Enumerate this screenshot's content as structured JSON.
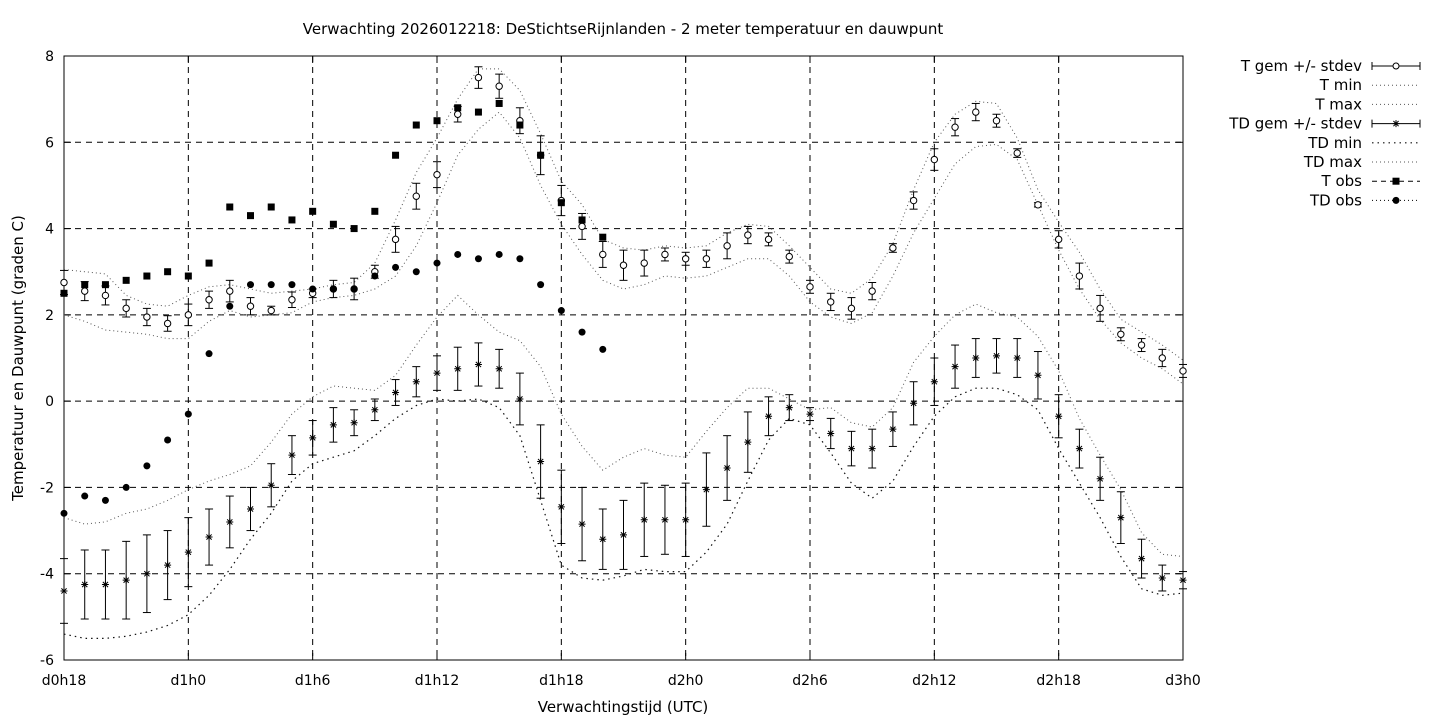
{
  "chart_data": {
    "type": "line",
    "title": "Verwachting 2026012218: DeStichtseRijnlanden - 2 meter temperatuur en dauwpunt",
    "xlabel": "Verwachtingstijd (UTC)",
    "ylabel": "Temperatuur en Dauwpunt (graden C)",
    "xlim": [
      0,
      54
    ],
    "ylim": [
      -6,
      8
    ],
    "x_ticks": [
      0,
      6,
      12,
      18,
      24,
      30,
      36,
      42,
      48,
      54
    ],
    "x_tick_labels": [
      "d0h18",
      "d1h0",
      "d1h6",
      "d1h12",
      "d1h18",
      "d2h0",
      "d2h6",
      "d2h12",
      "d2h18",
      "d3h0"
    ],
    "y_ticks": [
      -6,
      -4,
      -2,
      0,
      2,
      4,
      6,
      8
    ],
    "y_tick_labels": [
      "-6",
      "-4",
      "-2",
      "0",
      "2",
      "4",
      "6",
      "8"
    ],
    "grid": true,
    "legend_position": "outside-right",
    "legend": [
      "T gem +/- stdev",
      "T min",
      "T max",
      "TD gem +/- stdev",
      "TD min",
      "TD max",
      "T obs",
      "TD obs"
    ],
    "series": [
      {
        "name": "T gem +/- stdev",
        "style": "errorbar-circle",
        "x": [
          0,
          1,
          2,
          3,
          4,
          5,
          6,
          7,
          8,
          9,
          10,
          11,
          12,
          13,
          14,
          15,
          16,
          17,
          18,
          19,
          20,
          21,
          22,
          23,
          24,
          25,
          26,
          27,
          28,
          29,
          30,
          31,
          32,
          33,
          34,
          35,
          36,
          37,
          38,
          39,
          40,
          41,
          42,
          43,
          44,
          45,
          46,
          47,
          48,
          49,
          50,
          51,
          52,
          53,
          54
        ],
        "y": [
          2.75,
          2.55,
          2.45,
          2.15,
          1.95,
          1.8,
          2.0,
          2.35,
          2.55,
          2.2,
          2.1,
          2.35,
          2.5,
          2.6,
          2.6,
          3.0,
          3.75,
          4.75,
          5.25,
          6.65,
          7.5,
          7.3,
          6.5,
          5.7,
          4.65,
          4.05,
          3.4,
          3.15,
          3.2,
          3.4,
          3.3,
          3.3,
          3.6,
          3.85,
          3.75,
          3.35,
          2.65,
          2.3,
          2.15,
          2.55,
          3.55,
          4.65,
          5.6,
          6.35,
          6.7,
          6.5,
          5.75,
          4.55,
          3.75,
          2.9,
          2.15,
          1.55,
          1.3,
          1.0,
          0.7
        ],
        "stdev": [
          0.28,
          0.22,
          0.22,
          0.2,
          0.2,
          0.18,
          0.25,
          0.2,
          0.25,
          0.2,
          0.1,
          0.18,
          0.1,
          0.2,
          0.25,
          0.15,
          0.3,
          0.3,
          0.3,
          0.18,
          0.25,
          0.28,
          0.3,
          0.45,
          0.35,
          0.3,
          0.3,
          0.35,
          0.3,
          0.15,
          0.15,
          0.2,
          0.3,
          0.2,
          0.15,
          0.15,
          0.15,
          0.2,
          0.25,
          0.2,
          0.1,
          0.2,
          0.25,
          0.2,
          0.2,
          0.15,
          0.1,
          0.05,
          0.2,
          0.3,
          0.3,
          0.15,
          0.15,
          0.2,
          0.15
        ]
      },
      {
        "name": "T min",
        "style": "dotted",
        "x": [
          0,
          1,
          2,
          3,
          4,
          5,
          6,
          7,
          8,
          9,
          10,
          11,
          12,
          13,
          14,
          15,
          16,
          17,
          18,
          19,
          20,
          21,
          22,
          23,
          24,
          25,
          26,
          27,
          28,
          29,
          30,
          31,
          32,
          33,
          34,
          35,
          36,
          37,
          38,
          39,
          40,
          41,
          42,
          43,
          44,
          45,
          46,
          47,
          48,
          49,
          50,
          51,
          52,
          53,
          54
        ],
        "y": [
          2.0,
          1.85,
          1.65,
          1.6,
          1.55,
          1.45,
          1.45,
          1.85,
          2.1,
          1.95,
          2.0,
          2.05,
          2.3,
          2.4,
          2.45,
          2.6,
          2.9,
          3.6,
          4.6,
          5.7,
          6.3,
          6.7,
          6.1,
          5.0,
          4.1,
          3.4,
          2.8,
          2.6,
          2.7,
          2.9,
          2.85,
          2.9,
          3.1,
          3.3,
          3.3,
          2.9,
          2.3,
          1.95,
          1.8,
          2.05,
          2.9,
          3.9,
          4.7,
          5.5,
          5.9,
          5.95,
          5.6,
          4.55,
          3.5,
          2.6,
          1.9,
          1.35,
          1.0,
          0.75,
          0.4
        ]
      },
      {
        "name": "T max",
        "style": "dotted",
        "x": [
          0,
          1,
          2,
          3,
          4,
          5,
          6,
          7,
          8,
          9,
          10,
          11,
          12,
          13,
          14,
          15,
          16,
          17,
          18,
          19,
          20,
          21,
          22,
          23,
          24,
          25,
          26,
          27,
          28,
          29,
          30,
          31,
          32,
          33,
          34,
          35,
          36,
          37,
          38,
          39,
          40,
          41,
          42,
          43,
          44,
          45,
          46,
          47,
          48,
          49,
          50,
          51,
          52,
          53,
          54
        ],
        "y": [
          3.05,
          3.0,
          2.95,
          2.45,
          2.25,
          2.2,
          2.45,
          2.65,
          2.7,
          2.6,
          2.5,
          2.55,
          2.6,
          2.7,
          2.75,
          3.2,
          4.2,
          5.3,
          6.1,
          7.0,
          7.7,
          7.7,
          7.2,
          6.2,
          5.1,
          4.55,
          3.75,
          3.55,
          3.5,
          3.6,
          3.55,
          3.6,
          3.9,
          4.1,
          4.05,
          3.6,
          3.1,
          2.6,
          2.5,
          2.85,
          3.65,
          4.9,
          6.0,
          6.65,
          6.95,
          6.9,
          6.1,
          4.9,
          4.15,
          3.45,
          2.6,
          1.9,
          1.6,
          1.3,
          0.95
        ]
      },
      {
        "name": "TD gem +/- stdev",
        "style": "errorbar-star",
        "x": [
          0,
          1,
          2,
          3,
          4,
          5,
          6,
          7,
          8,
          9,
          10,
          11,
          12,
          13,
          14,
          15,
          16,
          17,
          18,
          19,
          20,
          21,
          22,
          23,
          24,
          25,
          26,
          27,
          28,
          29,
          30,
          31,
          32,
          33,
          34,
          35,
          36,
          37,
          38,
          39,
          40,
          41,
          42,
          43,
          44,
          45,
          46,
          47,
          48,
          49,
          50,
          51,
          52,
          53,
          54
        ],
        "y": [
          -4.4,
          -4.25,
          -4.25,
          -4.15,
          -4.0,
          -3.8,
          -3.5,
          -3.15,
          -2.8,
          -2.5,
          -1.95,
          -1.25,
          -0.85,
          -0.55,
          -0.5,
          -0.2,
          0.2,
          0.45,
          0.65,
          0.75,
          0.85,
          0.75,
          0.05,
          -1.4,
          -2.45,
          -2.85,
          -3.2,
          -3.1,
          -2.75,
          -2.75,
          -2.75,
          -2.05,
          -1.55,
          -0.95,
          -0.35,
          -0.15,
          -0.3,
          -0.75,
          -1.1,
          -1.1,
          -0.65,
          -0.05,
          0.45,
          0.8,
          1.0,
          1.05,
          1.0,
          0.6,
          -0.35,
          -1.1,
          -1.8,
          -2.7,
          -3.65,
          -4.1,
          -4.15
        ],
        "stdev": [
          0.75,
          0.8,
          0.8,
          0.9,
          0.9,
          0.8,
          0.8,
          0.65,
          0.6,
          0.5,
          0.5,
          0.45,
          0.4,
          0.4,
          0.3,
          0.25,
          0.3,
          0.35,
          0.4,
          0.5,
          0.5,
          0.45,
          0.6,
          0.85,
          0.85,
          0.85,
          0.7,
          0.8,
          0.85,
          0.8,
          0.85,
          0.85,
          0.75,
          0.7,
          0.45,
          0.3,
          0.15,
          0.35,
          0.4,
          0.45,
          0.4,
          0.5,
          0.55,
          0.5,
          0.45,
          0.4,
          0.45,
          0.55,
          0.5,
          0.45,
          0.5,
          0.6,
          0.45,
          0.3,
          0.2
        ]
      },
      {
        "name": "TD min",
        "style": "dotted",
        "x": [
          0,
          1,
          2,
          3,
          4,
          5,
          6,
          7,
          8,
          9,
          10,
          11,
          12,
          13,
          14,
          15,
          16,
          17,
          18,
          19,
          20,
          21,
          22,
          23,
          24,
          25,
          26,
          27,
          28,
          29,
          30,
          31,
          32,
          33,
          34,
          35,
          36,
          37,
          38,
          39,
          40,
          41,
          42,
          43,
          44,
          45,
          46,
          47,
          48,
          49,
          50,
          51,
          52,
          53,
          54
        ],
        "y": [
          -5.4,
          -5.5,
          -5.5,
          -5.45,
          -5.35,
          -5.2,
          -4.95,
          -4.5,
          -3.9,
          -3.2,
          -2.6,
          -1.85,
          -1.45,
          -1.3,
          -1.15,
          -0.8,
          -0.4,
          -0.1,
          0.05,
          0.0,
          0.05,
          -0.15,
          -0.8,
          -2.3,
          -3.8,
          -4.1,
          -4.15,
          -4.05,
          -3.9,
          -3.95,
          -3.95,
          -3.5,
          -2.85,
          -1.85,
          -0.9,
          -0.4,
          -0.55,
          -1.2,
          -1.9,
          -2.25,
          -1.85,
          -1.05,
          -0.35,
          0.1,
          0.3,
          0.3,
          0.15,
          -0.2,
          -1.1,
          -1.9,
          -2.7,
          -3.6,
          -4.35,
          -4.5,
          -4.45
        ]
      },
      {
        "name": "TD max",
        "style": "dotted",
        "x": [
          0,
          1,
          2,
          3,
          4,
          5,
          6,
          7,
          8,
          9,
          10,
          11,
          12,
          13,
          14,
          15,
          16,
          17,
          18,
          19,
          20,
          21,
          22,
          23,
          24,
          25,
          26,
          27,
          28,
          29,
          30,
          31,
          32,
          33,
          34,
          35,
          36,
          37,
          38,
          39,
          40,
          41,
          42,
          43,
          44,
          45,
          46,
          47,
          48,
          49,
          50,
          51,
          52,
          53,
          54
        ],
        "y": [
          -2.7,
          -2.85,
          -2.8,
          -2.6,
          -2.5,
          -2.3,
          -2.05,
          -1.85,
          -1.7,
          -1.5,
          -0.95,
          -0.3,
          0.1,
          0.35,
          0.3,
          0.25,
          0.6,
          1.3,
          1.95,
          2.45,
          2.0,
          1.6,
          1.4,
          0.8,
          -0.3,
          -1.05,
          -1.6,
          -1.3,
          -1.1,
          -1.25,
          -1.3,
          -0.7,
          -0.15,
          0.3,
          0.3,
          0.05,
          -0.2,
          -0.15,
          -0.5,
          -0.6,
          -0.15,
          0.9,
          1.5,
          2.0,
          2.25,
          2.05,
          1.95,
          1.5,
          0.7,
          -0.4,
          -1.25,
          -2.05,
          -3.05,
          -3.55,
          -3.6
        ]
      },
      {
        "name": "T obs",
        "style": "square",
        "x": [
          0,
          1,
          2,
          3,
          4,
          5,
          6,
          7,
          8,
          9,
          10,
          11,
          12,
          13,
          14,
          15,
          16,
          17,
          18,
          19,
          20,
          21,
          22,
          23,
          24,
          25,
          26
        ],
        "y": [
          2.5,
          2.7,
          2.7,
          2.8,
          2.9,
          3.0,
          2.9,
          3.2,
          4.5,
          4.3,
          4.5,
          4.2,
          4.4,
          4.1,
          4.0,
          4.4,
          5.7,
          6.4,
          6.5,
          6.8,
          6.7,
          6.9,
          6.4,
          5.7,
          4.6,
          4.2,
          3.8
        ]
      },
      {
        "name": "TD obs",
        "style": "dot",
        "x": [
          0,
          1,
          2,
          3,
          4,
          5,
          6,
          7,
          8,
          9,
          10,
          11,
          12,
          13,
          14,
          15,
          16,
          17,
          18,
          19,
          20,
          21,
          22,
          23,
          24,
          25,
          26
        ],
        "y": [
          -2.6,
          -2.2,
          -2.3,
          -2.0,
          -1.5,
          -0.9,
          -0.3,
          1.1,
          2.2,
          2.7,
          2.7,
          2.7,
          2.6,
          2.6,
          2.6,
          2.9,
          3.1,
          3.0,
          3.2,
          3.4,
          3.3,
          3.4,
          3.3,
          2.7,
          2.1,
          1.6,
          1.2
        ]
      }
    ]
  }
}
